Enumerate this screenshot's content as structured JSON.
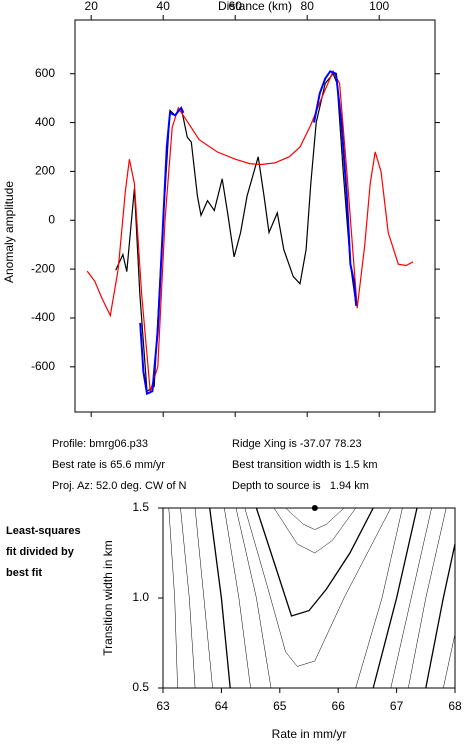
{
  "chart_data": [
    {
      "type": "line",
      "xlabel": "Distance (km)",
      "ylabel": "Anomaly amplitude",
      "xlim": [
        15.5,
        115.5
      ],
      "ylim": [
        -785,
        820
      ],
      "xticks": [
        20,
        40,
        60,
        80,
        100
      ],
      "yticks": [
        -600,
        -400,
        -200,
        0,
        200,
        400,
        600
      ],
      "series": [
        {
          "color": "#000000",
          "x": [
            26.8,
            28.8,
            29.9,
            32.0,
            33.5,
            35.5,
            37.5,
            40.0,
            41.9,
            43.3,
            45.0,
            46.7,
            47.8,
            49.5,
            50.5,
            52.3,
            54.2,
            56.4,
            58.0,
            59.7,
            61.5,
            63.3,
            66.4,
            68.0,
            69.4,
            71.7,
            73.5,
            76.1,
            78.0,
            79.7,
            81.0,
            82.5,
            85.0,
            87.2,
            88.3,
            90.0,
            92.0,
            93.6
          ],
          "values": [
            -205,
            -140,
            -210,
            130,
            -300,
            -700,
            -680,
            0,
            450,
            430,
            460,
            340,
            320,
            100,
            20,
            80,
            40,
            170,
            20,
            -150,
            -50,
            100,
            260,
            100,
            -50,
            30,
            -120,
            -230,
            -260,
            -120,
            150,
            400,
            560,
            600,
            560,
            200,
            -180,
            -350
          ]
        },
        {
          "color": "#ff0000",
          "x": [
            18.9,
            21.0,
            23.0,
            25.3,
            27.5,
            29.5,
            30.6,
            32.0,
            34.0,
            36.4,
            38.5,
            40.5,
            42.5,
            44.2,
            46.0,
            50.0,
            55.0,
            60.0,
            64.0,
            67.0,
            71.0,
            75.0,
            78.0,
            81.0,
            84.0,
            87.2,
            89.0,
            91.0,
            93.9,
            96.0,
            97.5,
            98.9,
            100.5,
            102.5,
            105.3,
            107.5,
            109.4
          ],
          "values": [
            -208,
            -250,
            -320,
            -390,
            -200,
            120,
            250,
            150,
            -300,
            -700,
            -600,
            0,
            380,
            460,
            420,
            330,
            280,
            250,
            232,
            228,
            235,
            260,
            300,
            390,
            500,
            610,
            560,
            200,
            -360,
            -100,
            150,
            280,
            200,
            -50,
            -180,
            -185,
            -170
          ]
        },
        {
          "color": "#0000ff",
          "x": [
            33.6,
            34.5,
            35.5,
            37.0,
            38.5,
            40.0,
            41.0,
            41.9,
            43.3,
            45.0,
            45.6,
            null,
            81.9,
            83.5,
            85.0,
            86.4,
            88.0,
            89.5,
            91.0,
            92.0,
            93.0,
            93.6
          ],
          "values": [
            -420,
            -620,
            -710,
            -700,
            -450,
            0,
            300,
            440,
            430,
            460,
            440,
            null,
            400,
            520,
            580,
            610,
            600,
            400,
            100,
            -180,
            -250,
            -350
          ]
        }
      ],
      "annotations": [
        "Profile: bmrg06.p33",
        "Ridge Xing is -37.07 78.23",
        "Best rate is 65.6 mm/yr",
        "Best transition width is 1.5 km",
        "Proj. Az: 52.0 deg. CW of N",
        "Depth to source is   1.94 km"
      ]
    },
    {
      "type": "contour",
      "title": [
        "Least-squares",
        "fit divided by",
        "best fit"
      ],
      "xlabel": "Rate in mm/yr",
      "ylabel": "Transition width in km",
      "xlim": [
        63,
        68
      ],
      "ylim": [
        0.5,
        1.5
      ],
      "xticks": [
        63,
        64,
        65,
        66,
        67,
        68
      ],
      "yticks": [
        0.5,
        {
          "value": 1.0,
          "label": "1.0"
        },
        1.5
      ],
      "best": {
        "x": 65.6,
        "y": 1.5
      },
      "contours": [
        {
          "bold": false,
          "x": [
            65.1,
            65.4,
            65.6,
            65.8,
            66.1
          ],
          "y": [
            1.5,
            1.41,
            1.38,
            1.41,
            1.5
          ]
        },
        {
          "bold": false,
          "x": [
            64.9,
            65.3,
            65.6,
            65.9,
            66.3
          ],
          "y": [
            1.5,
            1.3,
            1.25,
            1.32,
            1.5
          ]
        },
        {
          "bold": true,
          "x": [
            64.6,
            64.9,
            65.2,
            65.5,
            65.8,
            66.2,
            66.6
          ],
          "y": [
            1.5,
            1.2,
            0.9,
            0.93,
            1.05,
            1.25,
            1.5
          ]
        },
        {
          "bold": false,
          "x": [
            64.4,
            64.8,
            65.1,
            65.3,
            65.6,
            66.1,
            66.9
          ],
          "y": [
            1.5,
            1.05,
            0.7,
            0.62,
            0.65,
            1.0,
            1.5
          ]
        },
        {
          "bold": false,
          "x": [
            64.25,
            64.6,
            64.85
          ],
          "y": [
            1.5,
            1.0,
            0.5
          ]
        },
        {
          "bold": false,
          "x": [
            64.05,
            64.3,
            64.5
          ],
          "y": [
            1.5,
            1.0,
            0.5
          ]
        },
        {
          "bold": true,
          "x": [
            63.8,
            64.0,
            64.15
          ],
          "y": [
            1.5,
            1.0,
            0.5
          ]
        },
        {
          "bold": false,
          "x": [
            63.55,
            63.7,
            63.85
          ],
          "y": [
            1.5,
            1.0,
            0.5
          ]
        },
        {
          "bold": false,
          "x": [
            63.3,
            63.45,
            63.55
          ],
          "y": [
            1.5,
            1.0,
            0.5
          ]
        },
        {
          "bold": false,
          "x": [
            63.1,
            63.2,
            63.25
          ],
          "y": [
            1.5,
            1.0,
            0.5
          ]
        },
        {
          "bold": false,
          "x": [
            67.1,
            66.75,
            66.3
          ],
          "y": [
            1.5,
            1.0,
            0.5
          ]
        },
        {
          "bold": true,
          "x": [
            67.35,
            67.0,
            66.6
          ],
          "y": [
            1.5,
            1.0,
            0.5
          ]
        },
        {
          "bold": false,
          "x": [
            67.6,
            67.25,
            66.9
          ],
          "y": [
            1.5,
            1.0,
            0.5
          ]
        },
        {
          "bold": false,
          "x": [
            67.85,
            67.5,
            67.2
          ],
          "y": [
            1.5,
            1.0,
            0.5
          ]
        },
        {
          "bold": true,
          "x": [
            68.0,
            67.8,
            67.5
          ],
          "y": [
            1.3,
            1.0,
            0.5
          ]
        },
        {
          "bold": false,
          "x": [
            68.0,
            67.8
          ],
          "y": [
            0.8,
            0.5
          ]
        }
      ]
    }
  ]
}
